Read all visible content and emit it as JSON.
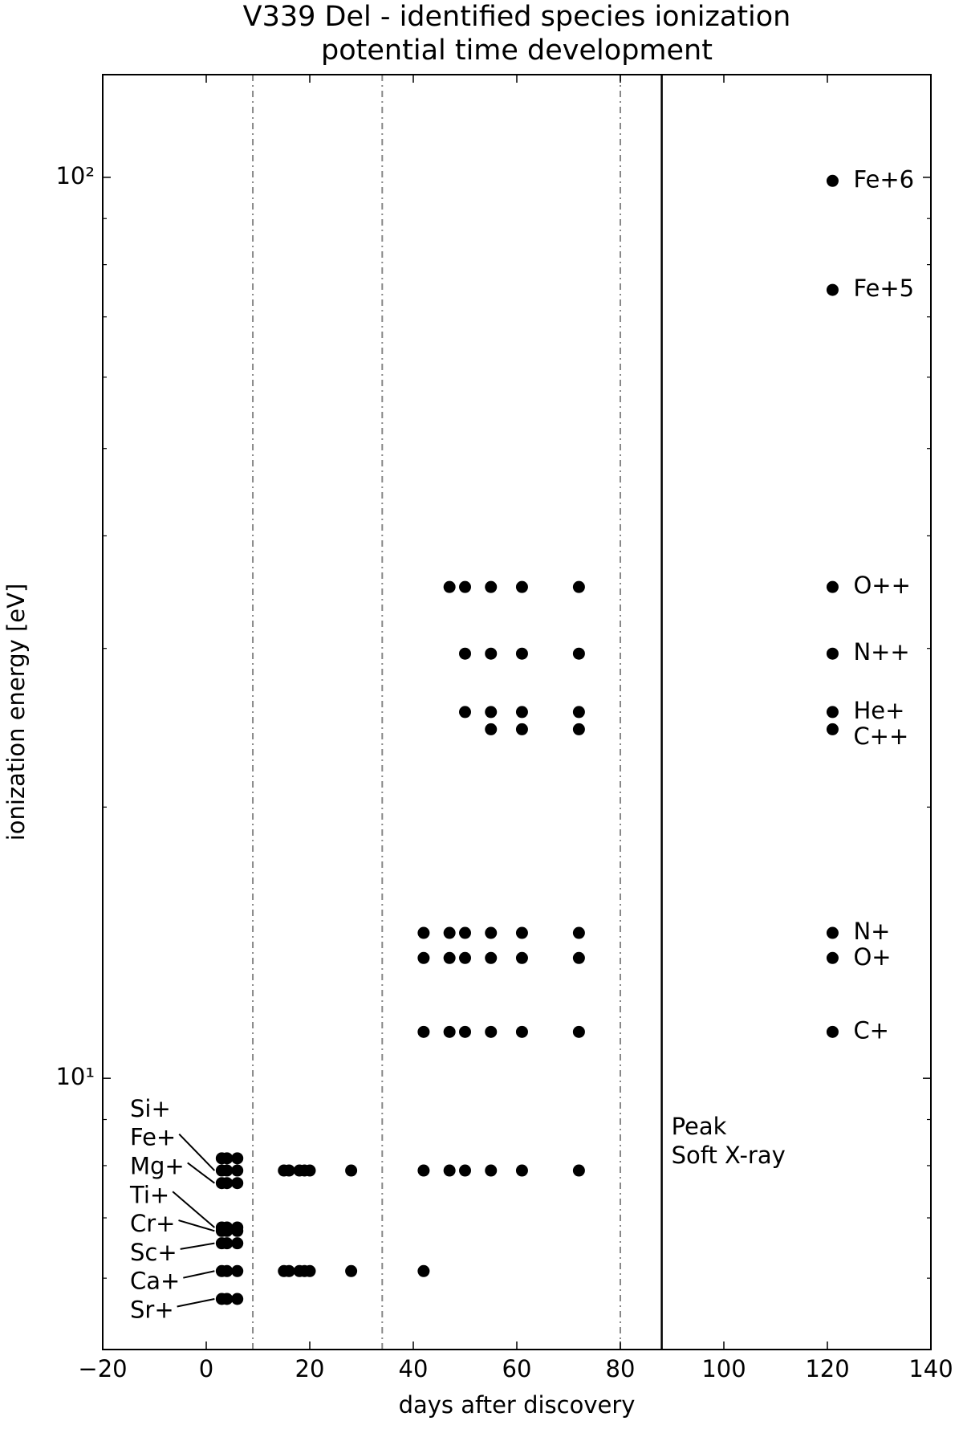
{
  "chart_data": {
    "type": "scatter",
    "title": [
      "V339 Del - identified species ionization",
      "potential time development"
    ],
    "xlabel": "days after discovery",
    "ylabel": "ionization energy [eV]",
    "xlim": [
      -20,
      140
    ],
    "xticks": [
      {
        "value": -20,
        "label": "−20"
      },
      0,
      20,
      40,
      60,
      80,
      100,
      120,
      140
    ],
    "ylim": [
      5,
      130
    ],
    "yscale": "log",
    "yticks": [
      {
        "value": 10,
        "label": "10¹"
      },
      {
        "value": 100,
        "label": "10²"
      }
    ],
    "yminor_ticks": [
      6,
      7,
      8,
      9,
      20,
      30,
      40,
      50,
      60,
      70,
      80,
      90
    ],
    "marker_color": "#000000",
    "vlines": [
      {
        "x": 9,
        "style": "dashdot",
        "color": "#888888"
      },
      {
        "x": 34,
        "style": "dashdot",
        "color": "#888888"
      },
      {
        "x": 80,
        "style": "dashdot",
        "color": "#888888"
      },
      {
        "x": 88,
        "style": "solid",
        "color": "#000000"
      }
    ],
    "annotation": [
      "Peak",
      "Soft X-ray"
    ],
    "series": [
      {
        "name": "Fe+6",
        "x": [
          121
        ],
        "values": [
          99.1
        ]
      },
      {
        "name": "Fe+5",
        "x": [
          121
        ],
        "values": [
          75
        ]
      },
      {
        "name": "O++",
        "x": [
          47,
          50,
          55,
          61,
          72,
          121
        ],
        "values": [
          35.1,
          35.1,
          35.1,
          35.1,
          35.1,
          35.1
        ]
      },
      {
        "name": "N++",
        "x": [
          50,
          55,
          61,
          72,
          121
        ],
        "values": [
          29.6,
          29.6,
          29.6,
          29.6,
          29.6
        ]
      },
      {
        "name": "He+",
        "x": [
          50,
          55,
          61,
          72,
          121
        ],
        "values": [
          25.5,
          25.5,
          25.5,
          25.5,
          25.5
        ]
      },
      {
        "name": "C++",
        "x": [
          55,
          61,
          72,
          121
        ],
        "values": [
          24.4,
          24.4,
          24.4,
          24.4
        ]
      },
      {
        "name": "N+",
        "x": [
          42,
          47,
          50,
          55,
          61,
          72,
          121
        ],
        "values": [
          14.5,
          14.5,
          14.5,
          14.5,
          14.5,
          14.5,
          14.5
        ]
      },
      {
        "name": "O+",
        "x": [
          42,
          47,
          50,
          55,
          61,
          72,
          121
        ],
        "values": [
          13.6,
          13.6,
          13.6,
          13.6,
          13.6,
          13.6,
          13.6
        ]
      },
      {
        "name": "C+",
        "x": [
          42,
          47,
          50,
          55,
          61,
          72,
          121
        ],
        "values": [
          11.26,
          11.26,
          11.26,
          11.26,
          11.26,
          11.26,
          11.26
        ]
      },
      {
        "name": "Si+",
        "x": [
          3,
          4,
          6
        ],
        "values": [
          8.15,
          8.15,
          8.15
        ]
      },
      {
        "name": "Fe+",
        "x": [
          3,
          4,
          6,
          15,
          16,
          18,
          19,
          20,
          28,
          42,
          47,
          50,
          55,
          61,
          72
        ],
        "values": [
          7.9,
          7.9,
          7.9,
          7.9,
          7.9,
          7.9,
          7.9,
          7.9,
          7.9,
          7.9,
          7.9,
          7.9,
          7.9,
          7.9,
          7.9
        ]
      },
      {
        "name": "Mg+",
        "x": [
          3,
          4,
          6
        ],
        "values": [
          7.65,
          7.65,
          7.65
        ]
      },
      {
        "name": "Ti+",
        "x": [
          3,
          4,
          6
        ],
        "values": [
          6.83,
          6.83,
          6.83
        ]
      },
      {
        "name": "Cr+",
        "x": [
          3,
          4,
          6
        ],
        "values": [
          6.77,
          6.77,
          6.77
        ]
      },
      {
        "name": "Sc+",
        "x": [
          3,
          4,
          6
        ],
        "values": [
          6.56,
          6.56,
          6.56
        ]
      },
      {
        "name": "Ca+",
        "x": [
          3,
          4,
          6,
          15,
          16,
          18,
          19,
          20,
          28,
          42
        ],
        "values": [
          6.11,
          6.11,
          6.11,
          6.11,
          6.11,
          6.11,
          6.11,
          6.11,
          6.11,
          6.11
        ]
      },
      {
        "name": "Sr+",
        "x": [
          3,
          4,
          6
        ],
        "values": [
          5.69,
          5.69,
          5.69
        ]
      }
    ]
  }
}
